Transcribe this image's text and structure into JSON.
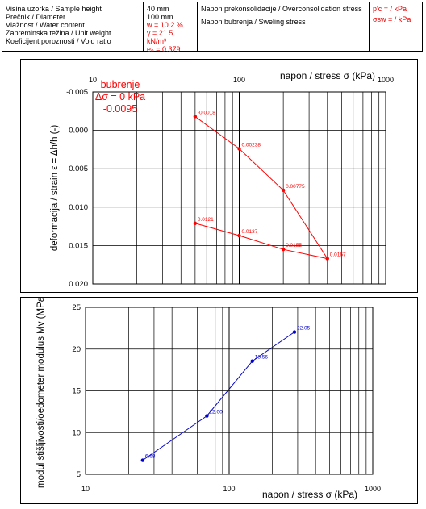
{
  "header": {
    "labels": [
      "Visina uzorka / Sample height",
      "Prečnik / Diameter",
      "Vlažnost / Water content",
      "Zapreminska težina / Unit weight",
      "Koeficijent poroznosti / Void ratio"
    ],
    "values": [
      "40 mm",
      "100 mm",
      "w = 10.2 %",
      "γ = 21.5 kN/m³",
      "e₀ = 0.379"
    ],
    "stress_labels": [
      "Napon prekonsolidacije / Overconsolidation stress",
      "Napon bubrenja / Sweling stress"
    ],
    "stress_values": [
      "p'c =    /  kPa",
      "σsw =    /  kPa"
    ]
  },
  "colors": {
    "strain": "#ff0000",
    "modulus": "#0000cc"
  },
  "chart_data": [
    {
      "type": "line",
      "x_scale": "log",
      "xlim": [
        10,
        1000
      ],
      "ylim": [
        -0.005,
        0.02
      ],
      "y_inverted": true,
      "x_ticks": [
        "10",
        "100",
        "1000"
      ],
      "y_ticks": [
        "-0.005",
        "0.000",
        "0.005",
        "0.010",
        "0.015",
        "0.020"
      ],
      "xlabel": "napon / stress σ (kPa)",
      "ylabel": "deformacija / strain ε = Δh/h  (-)",
      "annotation": [
        "bubrenje",
        "Δσ = 0 kPa",
        "-0.0095"
      ],
      "series": [
        {
          "x": [
            50,
            100,
            200,
            400,
            200,
            100,
            50
          ],
          "values": [
            -0.0018,
            0.0024,
            0.0078,
            0.0167,
            0.0155,
            0.0137,
            0.0121
          ],
          "labels": [
            "-0.0018",
            "0.00238",
            "0.00775",
            "0.0167",
            "0.0155",
            "0.0137",
            "0.0121"
          ]
        }
      ]
    },
    {
      "type": "line",
      "x_scale": "log",
      "xlim": [
        10,
        1000
      ],
      "ylim": [
        5,
        25
      ],
      "x_ticks": [
        "10",
        "100",
        "1000"
      ],
      "y_ticks": [
        "5",
        "10",
        "15",
        "20",
        "25"
      ],
      "xlabel": "napon / stress σ (kPa)",
      "ylabel": "modul stišljivosti/oedometer modulus Mv (MPa)",
      "series": [
        {
          "x": [
            25,
            70,
            145,
            285
          ],
          "values": [
            6.68,
            12.0,
            18.56,
            22.05
          ],
          "labels": [
            "6.68",
            "12.00",
            "18.56",
            "22.05"
          ]
        }
      ]
    }
  ]
}
